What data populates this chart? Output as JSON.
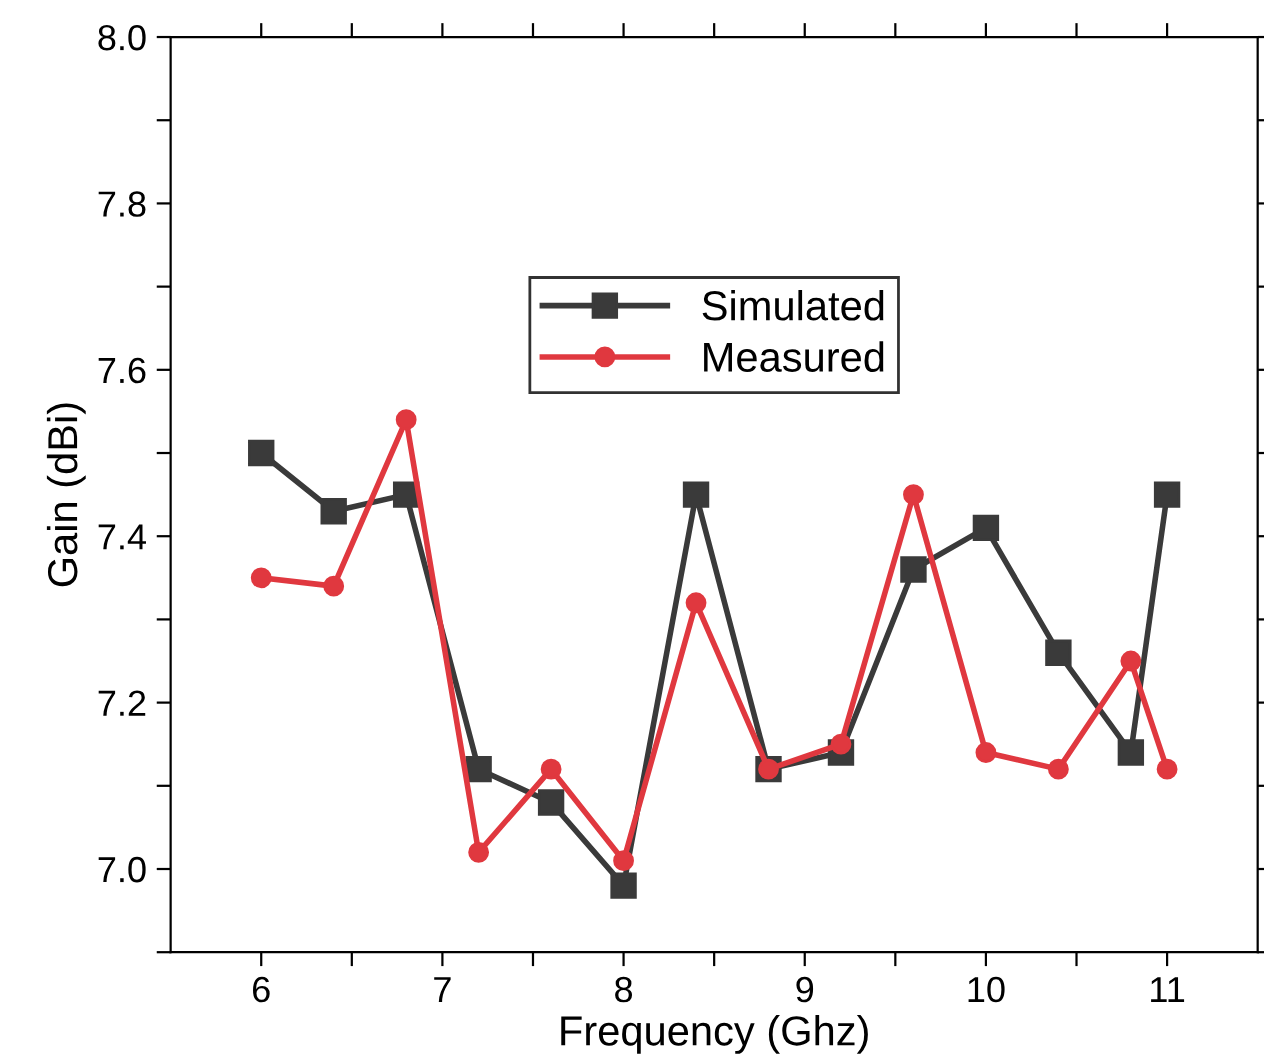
{
  "chart_data": {
    "type": "line",
    "xlabel": "Frequency (Ghz)",
    "ylabel": "Gain (dBi)",
    "x": [
      6,
      6.4,
      6.8,
      7.2,
      7.6,
      8,
      8.4,
      8.8,
      9.2,
      9.6,
      10,
      10.4,
      10.8,
      11
    ],
    "series": [
      {
        "name": "Simulated",
        "color": "#3a3a3a",
        "marker": "square",
        "values": [
          7.5,
          7.43,
          7.45,
          7.12,
          7.08,
          6.98,
          7.45,
          7.12,
          7.14,
          7.36,
          7.41,
          7.26,
          7.14,
          7.45
        ]
      },
      {
        "name": "Measured",
        "color": "#e0383f",
        "marker": "circle",
        "values": [
          7.35,
          7.34,
          7.54,
          7.02,
          7.12,
          7.01,
          7.32,
          7.12,
          7.15,
          7.45,
          7.14,
          7.12,
          7.25,
          7.12
        ]
      }
    ],
    "xlim": [
      5.5,
      11.5
    ],
    "ylim": [
      6.9,
      8.0
    ],
    "xticks": [
      6,
      {
        "value": 6.5,
        "label": null
      },
      7,
      {
        "value": 7.5,
        "label": null
      },
      8,
      {
        "value": 8.5,
        "label": null
      },
      9,
      {
        "value": 9.5,
        "label": null
      },
      10,
      {
        "value": 10.5,
        "label": null
      },
      11
    ],
    "yticks": [
      {
        "value": 6.9,
        "label": null
      },
      {
        "value": 7.0,
        "label": "7.0"
      },
      {
        "value": 7.1,
        "label": null
      },
      {
        "value": 7.2,
        "label": "7.2"
      },
      {
        "value": 7.3,
        "label": null
      },
      {
        "value": 7.4,
        "label": "7.4"
      },
      {
        "value": 7.5,
        "label": null
      },
      {
        "value": 7.6,
        "label": "7.6"
      },
      {
        "value": 7.7,
        "label": null
      },
      {
        "value": 7.8,
        "label": "7.8"
      },
      {
        "value": 7.9,
        "label": null
      },
      {
        "value": 8.0,
        "label": "8.0"
      }
    ],
    "grid": false,
    "legend": "top",
    "line_style": "solid"
  }
}
